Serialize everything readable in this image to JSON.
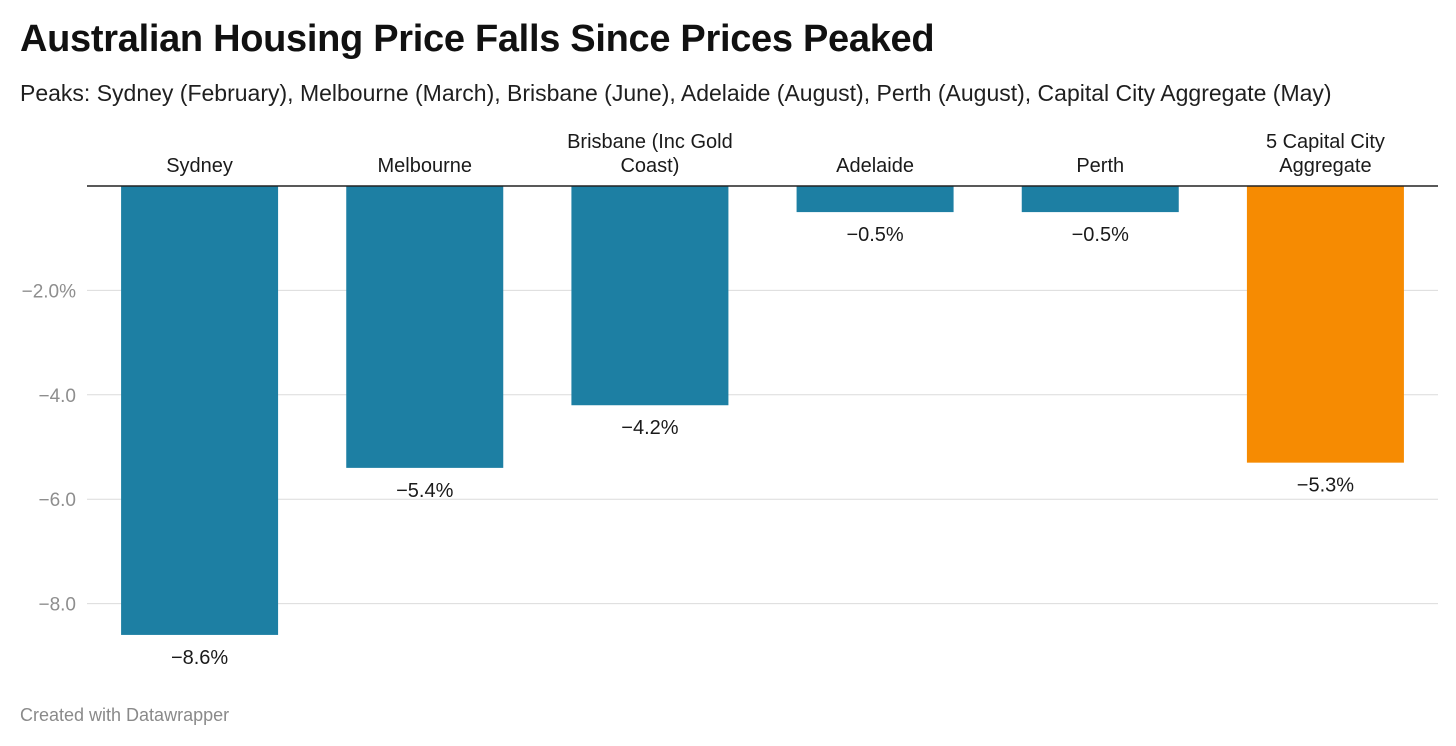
{
  "header": {
    "title": "Australian Housing Price Falls Since Prices Peaked",
    "subtitle": "Peaks: Sydney (February), Melbourne (March), Brisbane (June), Adelaide (August), Perth (August), Capital City Aggregate (May)"
  },
  "footer": {
    "credit": "Created with Datawrapper"
  },
  "chart_data": {
    "type": "bar",
    "orientation": "vertical",
    "categories": [
      [
        "Sydney"
      ],
      [
        "Melbourne"
      ],
      [
        "Brisbane (Inc Gold",
        "Coast)"
      ],
      [
        "Adelaide"
      ],
      [
        "Perth"
      ],
      [
        "5 Capital City",
        "Aggregate"
      ]
    ],
    "values": [
      -8.6,
      -5.4,
      -4.2,
      -0.5,
      -0.5,
      -5.3
    ],
    "value_labels": [
      "−8.6%",
      "−5.4%",
      "−4.2%",
      "−0.5%",
      "−0.5%",
      "−5.3%"
    ],
    "colors": [
      "#1d7fa3",
      "#1d7fa3",
      "#1d7fa3",
      "#1d7fa3",
      "#1d7fa3",
      "#f68b02"
    ],
    "ylim": [
      -9.2,
      0
    ],
    "yticks": [
      -2,
      -4,
      -6,
      -8
    ],
    "ytick_labels": [
      "−2.0%",
      "−4.0",
      "−6.0",
      "−8.0"
    ],
    "grid": true,
    "category_labels_position": "top",
    "xlabel": "",
    "ylabel": ""
  }
}
